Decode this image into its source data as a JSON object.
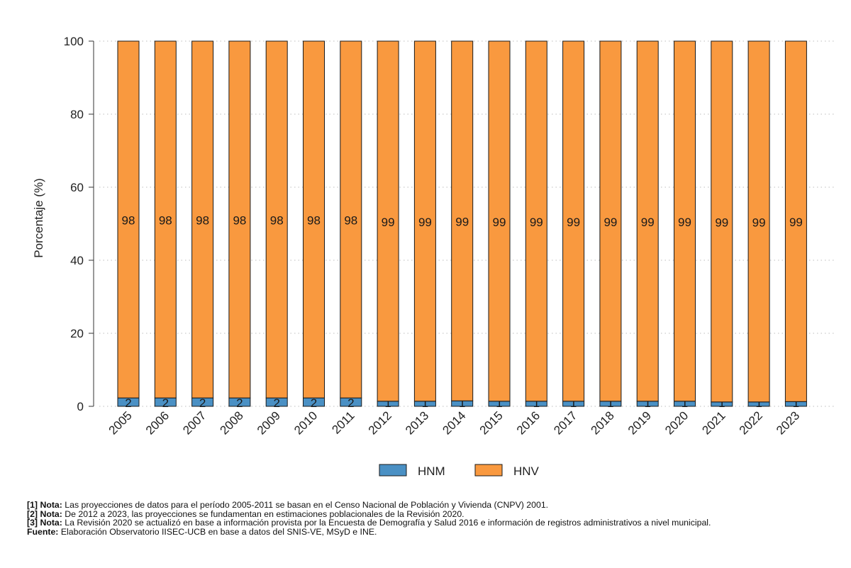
{
  "chart_data": {
    "type": "bar",
    "stacked": true,
    "title": "",
    "xlabel": "",
    "ylabel": "Porcentaje (%)",
    "ylim": [
      0,
      100
    ],
    "yticks": [
      "0",
      "20",
      "40",
      "60",
      "80",
      "100"
    ],
    "grid": "horizontal-dotted",
    "legend_position": "bottom-center",
    "categories": [
      "2005",
      "2006",
      "2007",
      "2008",
      "2009",
      "2010",
      "2011",
      "2012",
      "2013",
      "2014",
      "2015",
      "2016",
      "2017",
      "2018",
      "2019",
      "2020",
      "2021",
      "2022",
      "2023"
    ],
    "series": [
      {
        "name": "HNM",
        "color": "#4a90c4",
        "values": [
          2.3,
          2.3,
          2.3,
          2.3,
          2.3,
          2.3,
          2.3,
          1.4,
          1.4,
          1.5,
          1.4,
          1.4,
          1.4,
          1.4,
          1.4,
          1.4,
          1.2,
          1.2,
          1.3
        ],
        "labels": [
          "2",
          "2",
          "2",
          "2",
          "2",
          "2",
          "2",
          "1",
          "1",
          "1",
          "1",
          "1",
          "1",
          "1",
          "1",
          "1",
          "1",
          "1",
          "1"
        ]
      },
      {
        "name": "HNV",
        "color": "#f9993f",
        "values": [
          97.7,
          97.7,
          97.7,
          97.7,
          97.7,
          97.7,
          97.7,
          98.6,
          98.6,
          98.5,
          98.6,
          98.6,
          98.6,
          98.6,
          98.6,
          98.6,
          98.8,
          98.8,
          98.7
        ],
        "labels": [
          "98",
          "98",
          "98",
          "98",
          "98",
          "98",
          "98",
          "99",
          "99",
          "99",
          "99",
          "99",
          "99",
          "99",
          "99",
          "99",
          "99",
          "99",
          "99"
        ]
      }
    ]
  },
  "notes": [
    {
      "label": "[1] Nota:",
      "text": "Las proyecciones de datos para el período 2005-2011 se basan en el Censo Nacional de Población y Vivienda (CNPV) 2001."
    },
    {
      "label": "[2] Nota:",
      "text": "De 2012 a 2023, las proyecciones se fundamentan en estimaciones poblacionales de la Revisión 2020."
    },
    {
      "label": "[3] Nota:",
      "text": "La Revisión 2020 se actualizó en base a información provista por la Encuesta de Demografía y Salud 2016 e información de registros administrativos a nivel municipal."
    },
    {
      "label": "Fuente:",
      "text": "Elaboración Observatorio IISEC-UCB en base a datos del SNIS-VE, MSyD e INE."
    }
  ]
}
